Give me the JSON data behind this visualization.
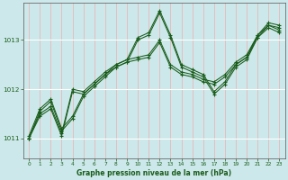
{
  "xlabel": "Graphe pression niveau de la mer (hPa)",
  "background_color": "#cce8ea",
  "grid_color_v": "#e8b8b8",
  "grid_color_h": "#ffffff",
  "line_color": "#1a5c1a",
  "xlim": [
    -0.5,
    23.5
  ],
  "ylim": [
    1010.6,
    1013.75
  ],
  "yticks": [
    1011,
    1012,
    1013
  ],
  "xticks": [
    0,
    1,
    2,
    3,
    4,
    5,
    6,
    7,
    8,
    9,
    10,
    11,
    12,
    13,
    14,
    15,
    16,
    17,
    18,
    19,
    20,
    21,
    22,
    23
  ],
  "series": [
    [
      1011.0,
      1011.55,
      1011.75,
      1011.15,
      1011.4,
      1011.85,
      1012.05,
      1012.25,
      1012.45,
      1012.55,
      1013.0,
      1013.1,
      1013.55,
      1013.05,
      1012.45,
      1012.35,
      1012.25,
      1011.9,
      1012.1,
      1012.45,
      1012.6,
      1013.05,
      1013.3,
      1013.25
    ],
    [
      1011.05,
      1011.6,
      1011.8,
      1011.2,
      1011.45,
      1011.9,
      1012.1,
      1012.3,
      1012.5,
      1012.6,
      1013.05,
      1013.15,
      1013.6,
      1013.1,
      1012.5,
      1012.4,
      1012.3,
      1011.95,
      1012.15,
      1012.5,
      1012.65,
      1013.1,
      1013.35,
      1013.3
    ],
    [
      1011.0,
      1011.5,
      1011.65,
      1011.1,
      1012.0,
      1011.95,
      1012.15,
      1012.35,
      1012.5,
      1012.6,
      1012.65,
      1012.7,
      1013.0,
      1012.5,
      1012.35,
      1012.3,
      1012.2,
      1012.15,
      1012.3,
      1012.55,
      1012.7,
      1013.1,
      1013.3,
      1013.2
    ],
    [
      1011.0,
      1011.45,
      1011.6,
      1011.05,
      1011.95,
      1011.9,
      1012.1,
      1012.3,
      1012.45,
      1012.55,
      1012.6,
      1012.65,
      1012.95,
      1012.45,
      1012.3,
      1012.25,
      1012.15,
      1012.1,
      1012.25,
      1012.5,
      1012.65,
      1013.05,
      1013.25,
      1013.15
    ]
  ]
}
